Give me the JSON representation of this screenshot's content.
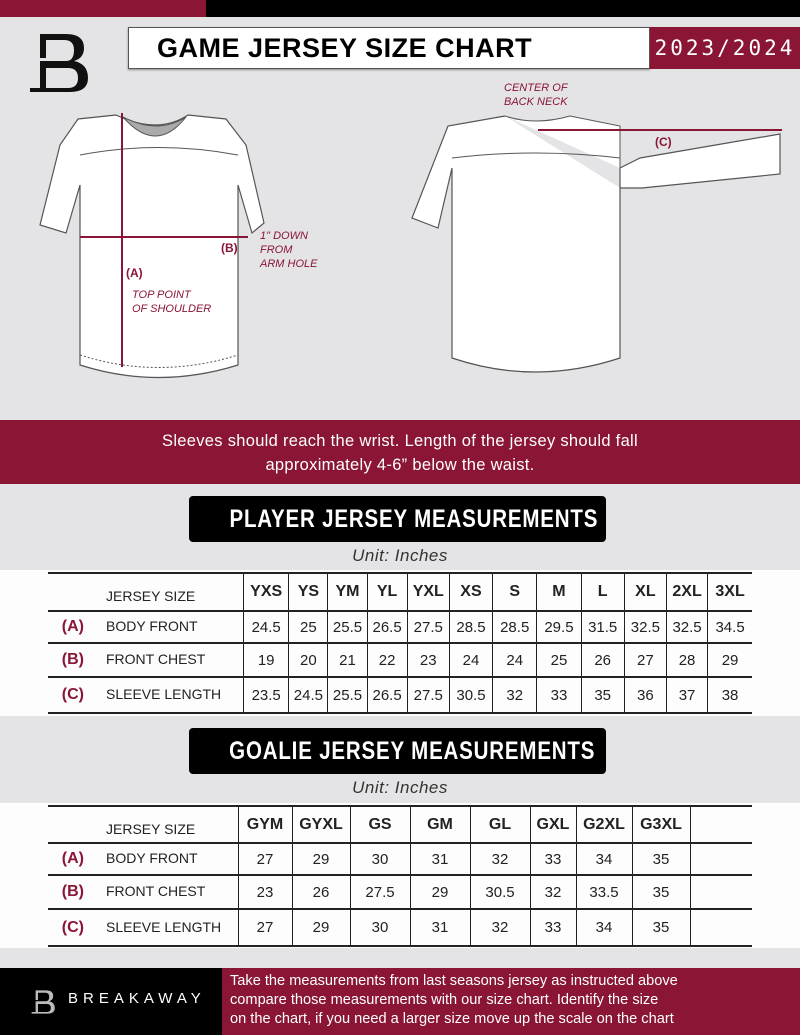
{
  "header": {
    "title": "GAME JERSEY SIZE CHART",
    "season": "2023/2024",
    "logo": "B-logo"
  },
  "diagram": {
    "front_labels": {
      "a": "(A)",
      "b": "(B)",
      "a_note": [
        "TOP POINT",
        "OF SHOULDER"
      ],
      "b_note": [
        "1\" DOWN",
        "FROM",
        "ARM HOLE"
      ]
    },
    "back_labels": {
      "c": "(C)",
      "c_note": [
        "CENTER OF",
        "BACK NECK"
      ]
    }
  },
  "instruction": [
    "Sleeves should reach the wrist. Length of the jersey should fall",
    "approximately 4-6” below the waist."
  ],
  "player": {
    "title": "PLAYER JERSEY MEASUREMENTS",
    "unit": "Unit: Inches",
    "size_label": "JERSEY SIZE",
    "sizes": [
      "YXS",
      "YS",
      "YM",
      "YL",
      "YXL",
      "XS",
      "S",
      "M",
      "L",
      "XL",
      "2XL",
      "3XL"
    ],
    "rows": [
      {
        "key": "(A)",
        "label": "BODY FRONT",
        "values": [
          "24.5",
          "25",
          "25.5",
          "26.5",
          "27.5",
          "28.5",
          "28.5",
          "29.5",
          "31.5",
          "32.5",
          "32.5",
          "34.5"
        ]
      },
      {
        "key": "(B)",
        "label": "FRONT CHEST",
        "values": [
          "19",
          "20",
          "21",
          "22",
          "23",
          "24",
          "24",
          "25",
          "26",
          "27",
          "28",
          "29"
        ]
      },
      {
        "key": "(C)",
        "label": "SLEEVE LENGTH",
        "values": [
          "23.5",
          "24.5",
          "25.5",
          "26.5",
          "27.5",
          "30.5",
          "32",
          "33",
          "35",
          "36",
          "37",
          "38"
        ]
      }
    ]
  },
  "goalie": {
    "title": "GOALIE JERSEY MEASUREMENTS",
    "unit": "Unit: Inches",
    "size_label": "JERSEY SIZE",
    "sizes": [
      "GYM",
      "GYXL",
      "GS",
      "GM",
      "GL",
      "GXL",
      "G2XL",
      "G3XL",
      ""
    ],
    "rows": [
      {
        "key": "(A)",
        "label": "BODY FRONT",
        "values": [
          "27",
          "29",
          "30",
          "31",
          "32",
          "33",
          "34",
          "35",
          ""
        ]
      },
      {
        "key": "(B)",
        "label": "FRONT CHEST",
        "values": [
          "23",
          "26",
          "27.5",
          "29",
          "30.5",
          "32",
          "33.5",
          "35",
          ""
        ]
      },
      {
        "key": "(C)",
        "label": "SLEEVE LENGTH",
        "values": [
          "27",
          "29",
          "30",
          "31",
          "32",
          "33",
          "34",
          "35",
          ""
        ]
      }
    ]
  },
  "footer": {
    "brand": "BREAKAWAY",
    "text": [
      "Take the measurements from last seasons jersey as instructed above",
      "compare those measurements  with our size chart. Identify the size",
      "on the chart, if you need a larger size move up the scale on the chart"
    ]
  },
  "colors": {
    "accent": "#8a1535",
    "background": "#e4e4e6",
    "dark": "#000000"
  }
}
